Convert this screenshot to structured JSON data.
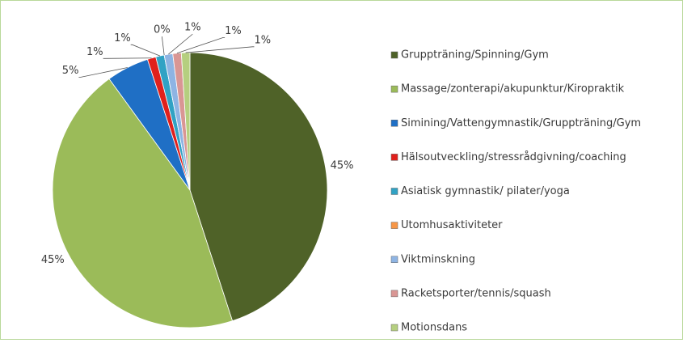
{
  "chart_data": {
    "type": "pie",
    "categories": [
      "Gruppträning/Spinning/Gym",
      "Massage/zonterapi/akupunktur/Kiropraktik",
      "Simining/Vattengymnastik/Gruppträning/Gym",
      "Hälsoutveckling/stressrådgivning/coaching",
      "Asiatisk gymnastik/ pilater/yoga",
      "Utomhusaktiviteter",
      "Viktminskning",
      "Racketsporter/tennis/squash",
      "Motionsdans"
    ],
    "values": [
      45,
      45,
      5,
      1,
      1,
      0,
      1,
      1,
      1
    ],
    "value_labels": [
      "45%",
      "45%",
      "5%",
      "1%",
      "1%",
      "0%",
      "1%",
      "1%",
      "1%"
    ],
    "colors": [
      "#4f6228",
      "#9bbb59",
      "#1f6fc5",
      "#e0201c",
      "#31a2c4",
      "#f79646",
      "#8eb4e3",
      "#d99694",
      "#b5cf7f"
    ],
    "legend": "right"
  }
}
